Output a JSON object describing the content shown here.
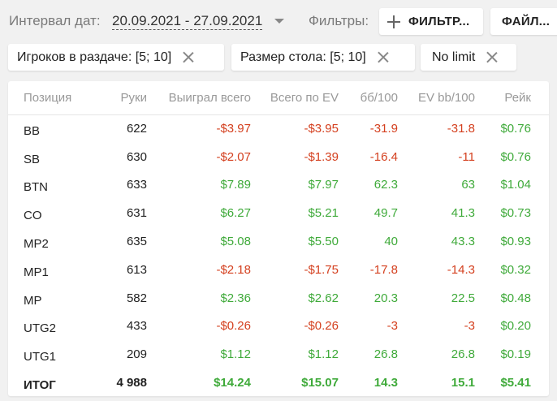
{
  "header": {
    "date_label": "Интервал дат:",
    "date_value": "20.09.2021 - 27.09.2021",
    "filters_label": "Фильтры:",
    "add_filter_label": "ФИЛЬТР...",
    "file_label": "ФАЙЛ..."
  },
  "chips": [
    {
      "label": "Игроков в раздаче: [5; 10]"
    },
    {
      "label": "Размер стола: [5; 10]"
    },
    {
      "label": "No limit"
    }
  ],
  "table": {
    "columns": [
      "Позиция",
      "Руки",
      "Выиграл всего",
      "Всего по EV",
      "бб/100",
      "EV bb/100",
      "Рейк"
    ],
    "rows": [
      [
        "BB",
        "622",
        "-$3.97",
        "-$3.95",
        "-31.9",
        "-31.8",
        "$0.76"
      ],
      [
        "SB",
        "630",
        "-$2.07",
        "-$1.39",
        "-16.4",
        "-11",
        "$0.76"
      ],
      [
        "BTN",
        "633",
        "$7.89",
        "$7.97",
        "62.3",
        "63",
        "$1.04"
      ],
      [
        "CO",
        "631",
        "$6.27",
        "$5.21",
        "49.7",
        "41.3",
        "$0.73"
      ],
      [
        "MP2",
        "635",
        "$5.08",
        "$5.50",
        "40",
        "43.3",
        "$0.93"
      ],
      [
        "MP1",
        "613",
        "-$2.18",
        "-$1.75",
        "-17.8",
        "-14.3",
        "$0.32"
      ],
      [
        "MP",
        "582",
        "$2.36",
        "$2.62",
        "20.3",
        "22.5",
        "$0.48"
      ],
      [
        "UTG2",
        "433",
        "-$0.26",
        "-$0.26",
        "-3",
        "-3",
        "$0.20"
      ],
      [
        "UTG1",
        "209",
        "$1.12",
        "$1.12",
        "26.8",
        "26.8",
        "$0.19"
      ]
    ],
    "total": [
      "ИТОГ",
      "4 988",
      "$14.24",
      "$15.07",
      "14.3",
      "15.1",
      "$5.41"
    ]
  },
  "colors": {
    "negative": "#d4401f",
    "positive": "#3faa3a",
    "background": "#f1f1f1"
  },
  "icons": [
    "chevron-down-icon",
    "plus-icon",
    "close-icon"
  ]
}
